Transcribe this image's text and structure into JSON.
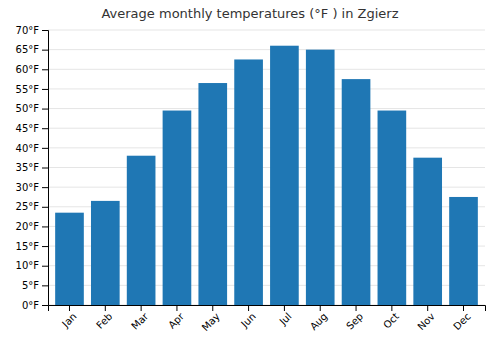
{
  "chart_data": {
    "type": "bar",
    "title": "Average monthly temperatures (°F ) in Zgierz",
    "categories": [
      "Jan",
      "Feb",
      "Mar",
      "Apr",
      "May",
      "Jun",
      "Jul",
      "Aug",
      "Sep",
      "Oct",
      "Nov",
      "Dec"
    ],
    "values": [
      23.5,
      26.5,
      38.0,
      49.5,
      56.5,
      62.5,
      66.0,
      65.0,
      57.5,
      49.5,
      37.5,
      27.5
    ],
    "ylim": [
      0,
      70
    ],
    "yticks": [
      {
        "value": 0,
        "label": "0°F"
      },
      {
        "value": 5,
        "label": "5°F"
      },
      {
        "value": 10,
        "label": "10°F"
      },
      {
        "value": 15,
        "label": "15°F"
      },
      {
        "value": 20,
        "label": "20°F"
      },
      {
        "value": 25,
        "label": "25°F"
      },
      {
        "value": 30,
        "label": "30°F"
      },
      {
        "value": 35,
        "label": "35°F"
      },
      {
        "value": 40,
        "label": "40°F"
      },
      {
        "value": 45,
        "label": "45°F"
      },
      {
        "value": 50,
        "label": "50°F"
      },
      {
        "value": 55,
        "label": "55°F"
      },
      {
        "value": 60,
        "label": "60°F"
      },
      {
        "value": 65,
        "label": "65°F"
      },
      {
        "value": 70,
        "label": "70°F"
      }
    ],
    "grid": true
  }
}
